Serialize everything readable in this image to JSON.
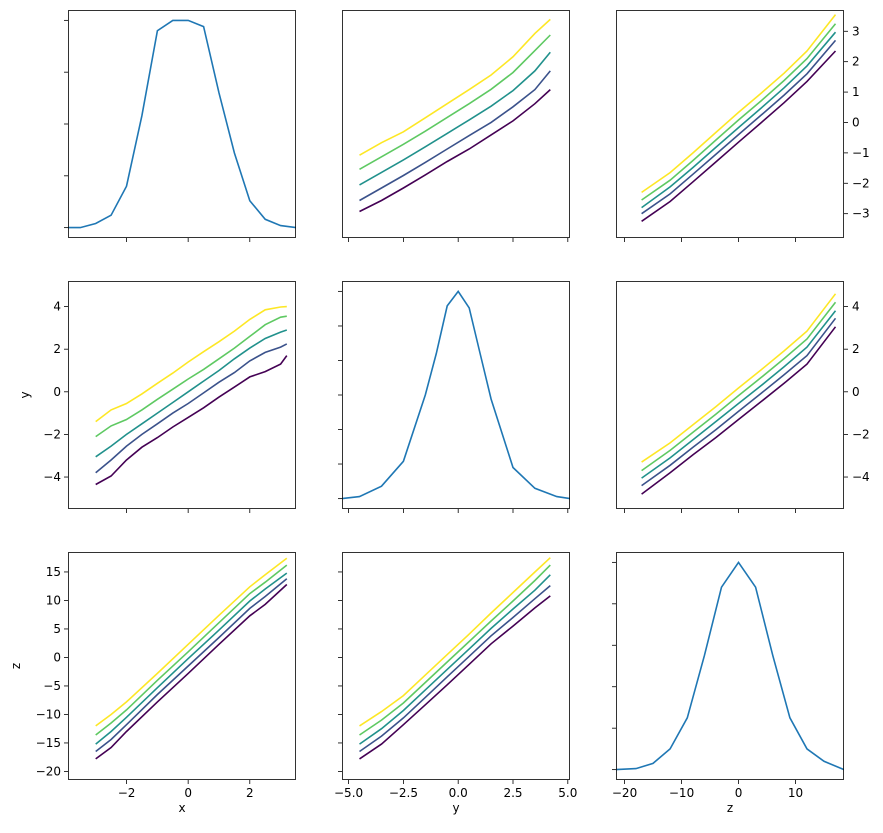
{
  "figure": {
    "colors": {
      "diagonal": "#1f77b4",
      "viridis": [
        "#440154",
        "#3b528b",
        "#21918c",
        "#5ec962",
        "#fde725"
      ]
    },
    "x_label": "x",
    "y_label": "y",
    "z_label": "z"
  },
  "chart_data": [
    {
      "type": "line",
      "panel": "x-x",
      "x": [
        -3.9,
        -3.5,
        -3.0,
        -2.5,
        -2.0,
        -1.5,
        -1.0,
        -0.5,
        0.0,
        0.5,
        1.0,
        1.5,
        2.0,
        2.5,
        3.0,
        3.5
      ],
      "y": [
        0.0,
        0.0,
        0.02,
        0.06,
        0.2,
        0.54,
        0.95,
        1.0,
        1.0,
        0.97,
        0.65,
        0.36,
        0.13,
        0.04,
        0.01,
        0.0
      ],
      "xlim": [
        -3.9,
        3.5
      ],
      "ylim": [
        -0.05,
        1.05
      ],
      "yticks_unlabeled": [
        0.0,
        0.25,
        0.5,
        0.75,
        1.0
      ]
    },
    {
      "type": "line",
      "panel": "y-x",
      "x": [
        -4.5,
        -3.5,
        -2.5,
        -1.5,
        -0.5,
        0.5,
        1.5,
        2.5,
        3.5,
        4.2
      ],
      "series": [
        {
          "values": [
            -2.95,
            -2.6,
            -2.2,
            -1.78,
            -1.35,
            -0.95,
            -0.5,
            -0.05,
            0.5,
            0.95
          ]
        },
        {
          "values": [
            -2.6,
            -2.2,
            -1.8,
            -1.38,
            -0.95,
            -0.52,
            -0.1,
            0.4,
            0.95,
            1.55
          ]
        },
        {
          "values": [
            -2.1,
            -1.7,
            -1.3,
            -0.88,
            -0.45,
            -0.02,
            0.42,
            0.92,
            1.55,
            2.15
          ]
        },
        {
          "values": [
            -1.6,
            -1.2,
            -0.8,
            -0.38,
            0.06,
            0.5,
            0.96,
            1.5,
            2.2,
            2.7
          ]
        },
        {
          "values": [
            -1.15,
            -0.75,
            -0.4,
            0.05,
            0.5,
            0.95,
            1.42,
            2.0,
            2.75,
            3.2
          ]
        }
      ],
      "xlim": [
        -5.3,
        5.1
      ],
      "ylim": [
        -3.8,
        3.5
      ]
    },
    {
      "type": "line",
      "panel": "z-x",
      "x": [
        -17,
        -12,
        -8,
        -4,
        0,
        4,
        8,
        12,
        17
      ],
      "series": [
        {
          "values": [
            -3.25,
            -2.6,
            -1.95,
            -1.3,
            -0.65,
            0.0,
            0.65,
            1.35,
            2.35
          ]
        },
        {
          "values": [
            -3.0,
            -2.35,
            -1.7,
            -1.05,
            -0.4,
            0.25,
            0.9,
            1.6,
            2.7
          ]
        },
        {
          "values": [
            -2.8,
            -2.12,
            -1.48,
            -0.82,
            -0.17,
            0.48,
            1.14,
            1.86,
            2.97
          ]
        },
        {
          "values": [
            -2.55,
            -1.9,
            -1.25,
            -0.58,
            0.08,
            0.72,
            1.38,
            2.1,
            3.25
          ]
        },
        {
          "values": [
            -2.3,
            -1.65,
            -1.0,
            -0.33,
            0.33,
            0.97,
            1.62,
            2.35,
            3.55
          ]
        }
      ],
      "xlim": [
        -21.5,
        18.5
      ],
      "ylim": [
        -3.8,
        3.7
      ],
      "yticks": [
        -3,
        -2,
        -1,
        0,
        1,
        2,
        3
      ]
    },
    {
      "type": "line",
      "panel": "x-y",
      "x": [
        -3.0,
        -2.5,
        -2.0,
        -1.5,
        -1.0,
        -0.5,
        0.0,
        0.5,
        1.0,
        1.5,
        2.0,
        2.5,
        3.0,
        3.2
      ],
      "series": [
        {
          "values": [
            -4.35,
            -3.95,
            -3.2,
            -2.6,
            -2.15,
            -1.65,
            -1.2,
            -0.75,
            -0.25,
            0.22,
            0.7,
            0.95,
            1.3,
            1.7
          ]
        },
        {
          "values": [
            -3.8,
            -3.2,
            -2.55,
            -2.0,
            -1.5,
            -1.0,
            -0.55,
            -0.05,
            0.45,
            0.9,
            1.45,
            1.85,
            2.1,
            2.25
          ]
        },
        {
          "values": [
            -3.05,
            -2.55,
            -2.0,
            -1.5,
            -1.0,
            -0.5,
            0.0,
            0.5,
            1.0,
            1.55,
            2.05,
            2.5,
            2.8,
            2.9
          ]
        },
        {
          "values": [
            -2.1,
            -1.6,
            -1.3,
            -0.85,
            -0.35,
            0.12,
            0.6,
            1.05,
            1.55,
            2.05,
            2.6,
            3.15,
            3.5,
            3.55
          ]
        },
        {
          "values": [
            -1.4,
            -0.85,
            -0.55,
            -0.1,
            0.4,
            0.88,
            1.4,
            1.88,
            2.35,
            2.85,
            3.4,
            3.85,
            3.98,
            4.0
          ]
        }
      ],
      "xlim": [
        -3.9,
        3.5
      ],
      "ylim": [
        -5.5,
        5.2
      ],
      "yticks": [
        -4,
        -2,
        0,
        2,
        4
      ]
    },
    {
      "type": "line",
      "panel": "y-y",
      "x": [
        -5.3,
        -4.5,
        -3.5,
        -2.5,
        -1.5,
        -1.0,
        -0.5,
        0.0,
        0.5,
        1.0,
        1.5,
        2.5,
        3.5,
        4.5,
        5.1
      ],
      "y": [
        0.0,
        0.01,
        0.06,
        0.18,
        0.5,
        0.7,
        0.93,
        1.0,
        0.92,
        0.7,
        0.48,
        0.15,
        0.05,
        0.01,
        0.0
      ],
      "xlim": [
        -5.3,
        5.1
      ],
      "ylim": [
        -0.05,
        1.05
      ],
      "yticks_unlabeled": [
        0.0,
        0.167,
        0.333,
        0.5,
        0.667,
        0.833,
        1.0
      ]
    },
    {
      "type": "line",
      "panel": "z-y",
      "x": [
        -17,
        -12,
        -8,
        -4,
        0,
        4,
        8,
        12,
        17
      ],
      "series": [
        {
          "values": [
            -4.8,
            -3.8,
            -2.95,
            -2.15,
            -1.3,
            -0.45,
            0.4,
            1.3,
            3.05
          ]
        },
        {
          "values": [
            -4.4,
            -3.45,
            -2.6,
            -1.78,
            -0.92,
            -0.06,
            0.8,
            1.7,
            3.45
          ]
        },
        {
          "values": [
            -4.05,
            -3.1,
            -2.25,
            -1.4,
            -0.55,
            0.3,
            1.18,
            2.1,
            3.8
          ]
        },
        {
          "values": [
            -3.7,
            -2.75,
            -1.9,
            -1.05,
            -0.18,
            0.68,
            1.56,
            2.48,
            4.2
          ]
        },
        {
          "values": [
            -3.3,
            -2.4,
            -1.55,
            -0.7,
            0.18,
            1.04,
            1.92,
            2.85,
            4.6
          ]
        }
      ],
      "xlim": [
        -21.5,
        18.5
      ],
      "ylim": [
        -5.5,
        5.2
      ],
      "yticks": [
        -4,
        -2,
        0,
        2,
        4
      ]
    },
    {
      "type": "line",
      "panel": "x-z",
      "x": [
        -3.0,
        -2.5,
        -2.0,
        -1.0,
        0.0,
        1.0,
        2.0,
        2.5,
        3.2
      ],
      "series": [
        {
          "values": [
            -17.8,
            -15.8,
            -13.0,
            -7.8,
            -2.8,
            2.3,
            7.3,
            9.3,
            12.8
          ]
        },
        {
          "values": [
            -16.5,
            -14.4,
            -11.8,
            -6.5,
            -1.5,
            3.5,
            8.6,
            10.7,
            13.8
          ]
        },
        {
          "values": [
            -15.2,
            -13.0,
            -10.5,
            -5.3,
            -0.2,
            4.8,
            9.9,
            12.0,
            14.8
          ]
        },
        {
          "values": [
            -13.6,
            -11.5,
            -9.2,
            -4.0,
            1.0,
            6.1,
            11.2,
            13.2,
            16.2
          ]
        },
        {
          "values": [
            -12.0,
            -10.0,
            -7.8,
            -2.8,
            2.3,
            7.4,
            12.4,
            14.5,
            17.4
          ]
        }
      ],
      "xlim": [
        -3.9,
        3.5
      ],
      "ylim": [
        -21.5,
        18.5
      ],
      "yticks": [
        -20,
        -15,
        -10,
        -5,
        0,
        5,
        10,
        15
      ],
      "xticks": [
        -2,
        0,
        2
      ],
      "xlabel": "x",
      "ylabel": "z"
    },
    {
      "type": "line",
      "panel": "y-z",
      "x": [
        -4.5,
        -3.5,
        -2.5,
        -1.5,
        -0.5,
        0.5,
        1.5,
        2.5,
        3.5,
        4.2
      ],
      "series": [
        {
          "values": [
            -17.8,
            -15.2,
            -11.8,
            -8.3,
            -4.8,
            -1.2,
            2.4,
            5.5,
            8.7,
            10.8
          ]
        },
        {
          "values": [
            -16.5,
            -13.8,
            -10.6,
            -7.0,
            -3.4,
            0.2,
            3.8,
            7.0,
            10.3,
            12.6
          ]
        },
        {
          "values": [
            -15.2,
            -12.5,
            -9.3,
            -5.7,
            -2.1,
            1.5,
            5.1,
            8.5,
            11.8,
            14.5
          ]
        },
        {
          "values": [
            -13.6,
            -11.0,
            -8.0,
            -4.4,
            -0.8,
            2.8,
            6.4,
            9.9,
            13.5,
            16.2
          ]
        },
        {
          "values": [
            -12.0,
            -9.5,
            -6.7,
            -3.1,
            0.5,
            4.1,
            7.8,
            11.4,
            15.0,
            17.5
          ]
        }
      ],
      "xlim": [
        -5.3,
        5.1
      ],
      "ylim": [
        -21.5,
        18.5
      ],
      "yticks_unlabeled": [
        -20,
        -15,
        -10,
        -5,
        0,
        5,
        10,
        15
      ],
      "xticks": [
        -5.0,
        -2.5,
        0.0,
        2.5,
        5.0
      ],
      "xtick_labels": [
        "−5.0",
        "−2.5",
        "0.0",
        "2.5",
        "5.0"
      ],
      "xlabel": "y"
    },
    {
      "type": "line",
      "panel": "z-z",
      "x": [
        -21.5,
        -18,
        -15,
        -12,
        -9,
        -6,
        -3,
        0,
        3,
        6,
        9,
        12,
        15,
        18.5
      ],
      "y": [
        0.0,
        0.005,
        0.03,
        0.1,
        0.25,
        0.55,
        0.88,
        1.0,
        0.88,
        0.55,
        0.25,
        0.1,
        0.04,
        0.0
      ],
      "xlim": [
        -21.5,
        18.5
      ],
      "ylim": [
        -0.05,
        1.05
      ],
      "yticks_unlabeled": [
        0.0,
        0.2,
        0.4,
        0.6,
        0.8,
        1.0
      ],
      "xticks": [
        -20,
        -10,
        0,
        10
      ],
      "xtick_labels": [
        "−20",
        "−10",
        "0",
        "10"
      ],
      "xlabel": "z"
    }
  ]
}
